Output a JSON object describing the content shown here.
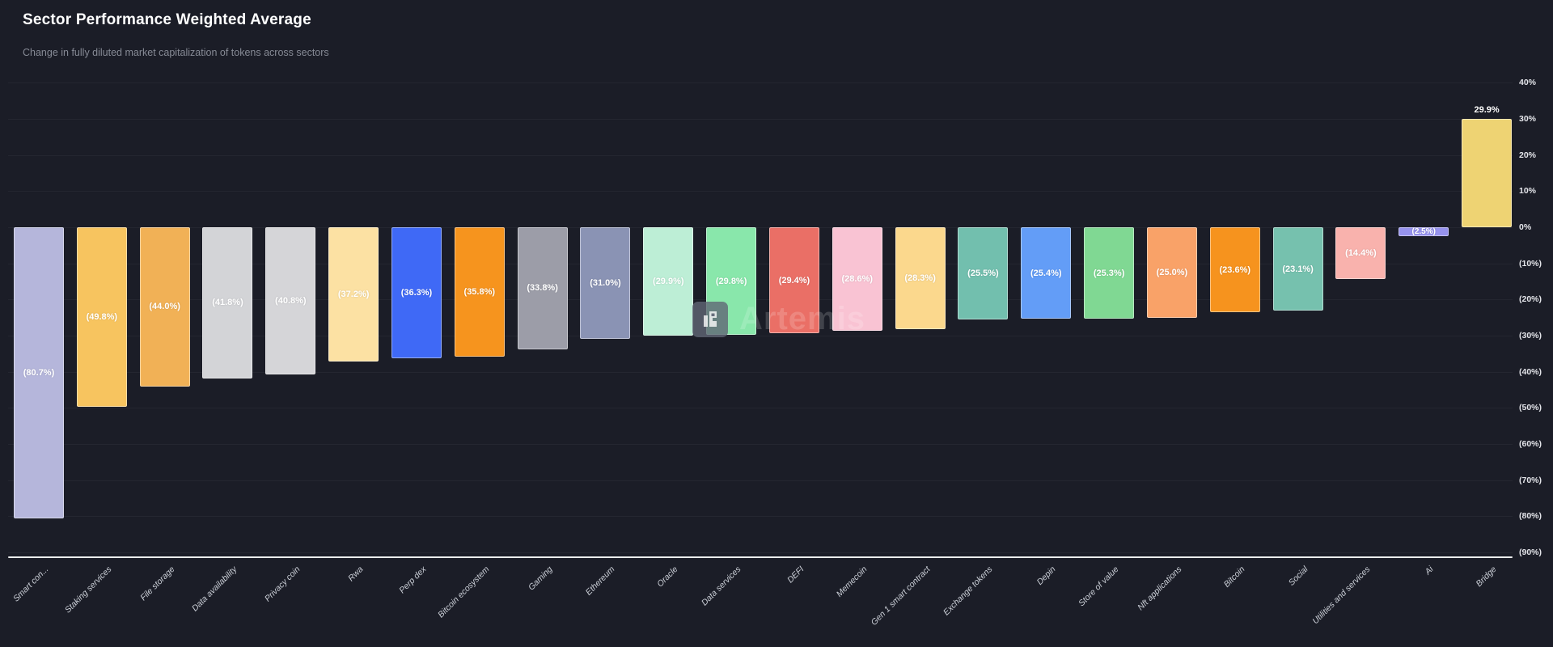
{
  "header": {
    "title": "Sector Performance Weighted Average",
    "subtitle": "Change in fully diluted market capitalization of tokens across sectors"
  },
  "watermark": {
    "text": "Artemis"
  },
  "theme": {
    "background": "#1b1d27",
    "title_color": "#ffffff",
    "subtitle_color": "#868a95",
    "axis_line_color": "#eceded",
    "tick_label_color": "#e4e5ea",
    "x_label_color": "#ccd0d8",
    "bar_value_label_color": "#ffffff"
  },
  "chart_data": {
    "type": "bar",
    "title": "Sector Performance Weighted Average",
    "xlabel": "",
    "ylabel": "",
    "ylim": [
      -90,
      40
    ],
    "grid": true,
    "legend": "none",
    "y_axis_side": "right",
    "y_ticks": [
      40,
      30,
      20,
      10,
      0,
      -10,
      -20,
      -30,
      -40,
      -50,
      -60,
      -70,
      -80,
      -90
    ],
    "y_tick_labels": [
      "40%",
      "30%",
      "20%",
      "10%",
      "0%",
      "(10%)",
      "(20%)",
      "(30%)",
      "(40%)",
      "(50%)",
      "(60%)",
      "(70%)",
      "(80%)",
      "(90%)"
    ],
    "categories": [
      "Smart con...",
      "Staking services",
      "File storage",
      "Data availability",
      "Privacy coin",
      "Rwa",
      "Perp dex",
      "Bitcoin ecosystem",
      "Gaming",
      "Ethereum",
      "Oracle",
      "Data services",
      "DEFI",
      "Memecoin",
      "Gen 1 smart contract",
      "Exchange tokens",
      "Depin",
      "Store of value",
      "Nft applications",
      "Bitcoin",
      "Social",
      "Utilities and services",
      "Ai",
      "Bridge"
    ],
    "values": [
      -80.7,
      -49.8,
      -44.0,
      -41.8,
      -40.8,
      -37.2,
      -36.3,
      -35.8,
      -33.8,
      -31.0,
      -29.9,
      -29.8,
      -29.4,
      -28.6,
      -28.3,
      -25.5,
      -25.4,
      -25.3,
      -25.0,
      -23.6,
      -23.1,
      -14.4,
      -2.5,
      29.9
    ],
    "value_labels": [
      "(80.7%)",
      "(49.8%)",
      "(44.0%)",
      "(41.8%)",
      "(40.8%)",
      "(37.2%)",
      "(36.3%)",
      "(35.8%)",
      "(33.8%)",
      "(31.0%)",
      "(29.9%)",
      "(29.8%)",
      "(29.4%)",
      "(28.6%)",
      "(28.3%)",
      "(25.5%)",
      "(25.4%)",
      "(25.3%)",
      "(25.0%)",
      "(23.6%)",
      "(23.1%)",
      "(14.4%)",
      "(2.5%)",
      "29.9%"
    ],
    "colors": [
      "#b5b6db",
      "#f7c45f",
      "#f1b156",
      "#d3d4d7",
      "#d5d5d8",
      "#fce1a3",
      "#3f69f6",
      "#f6941e",
      "#9c9da8",
      "#8a93b4",
      "#bdeed6",
      "#89e7ab",
      "#ea6f66",
      "#f9c3d3",
      "#fbd88d",
      "#72bfae",
      "#639df7",
      "#80d893",
      "#f9a268",
      "#f6931e",
      "#76c1ae",
      "#f9b2ad",
      "#9793ee",
      "#eed373"
    ]
  }
}
